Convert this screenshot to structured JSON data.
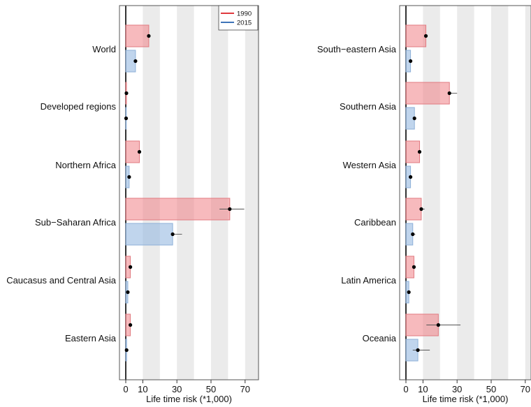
{
  "chart_data": [
    {
      "type": "bar",
      "orientation": "horizontal",
      "xlabel": "Life time risk (*1,000)",
      "xticks": [
        0,
        10,
        30,
        50,
        70
      ],
      "xlim": [
        0,
        78
      ],
      "background_bands": [
        [
          10,
          20
        ],
        [
          30,
          40
        ],
        [
          50,
          60
        ],
        [
          70,
          78
        ]
      ],
      "legend": {
        "placement": "top-right",
        "entries": [
          "1990",
          "2015"
        ]
      },
      "categories": [
        "World",
        "Developed regions",
        "Northern Africa",
        "Sub−Saharan Africa",
        "Caucasus and Central Asia",
        "Eastern Asia"
      ],
      "series": [
        {
          "name": "1990",
          "color": "#e0393e",
          "values": [
            13.5,
            0.4,
            8,
            61,
            2.7,
            2.7
          ],
          "ci": [
            [
              13,
              14
            ],
            [
              0.3,
              0.5
            ],
            [
              7.5,
              8.5
            ],
            [
              55,
              69.5
            ],
            [
              2.5,
              2.9
            ],
            [
              2.5,
              2.9
            ]
          ]
        },
        {
          "name": "2015",
          "color": "#3e74b8",
          "values": [
            5.7,
            0.2,
            2,
            27.5,
            1.2,
            0.5
          ],
          "ci": [
            [
              5.5,
              5.9
            ],
            [
              0.1,
              0.3
            ],
            [
              1.8,
              2.2
            ],
            [
              27,
              33
            ],
            [
              1.1,
              1.3
            ],
            [
              0.4,
              0.6
            ]
          ]
        }
      ]
    },
    {
      "type": "bar",
      "orientation": "horizontal",
      "xlabel": "Life time risk (*1,000)",
      "xticks": [
        0,
        10,
        30,
        50,
        70
      ],
      "xlim": [
        0,
        73
      ],
      "background_bands": [
        [
          10,
          20
        ],
        [
          30,
          40
        ],
        [
          50,
          60
        ],
        [
          70,
          73
        ]
      ],
      "categories": [
        "South−eastern Asia",
        "Southern Asia",
        "Western Asia",
        "Caribbean",
        "Latin America",
        "Oceania"
      ],
      "series": [
        {
          "name": "1990",
          "color": "#e0393e",
          "values": [
            11.7,
            25.5,
            8,
            9,
            4.7,
            19
          ],
          "ci": [
            [
              11,
              12.5
            ],
            [
              25,
              30
            ],
            [
              7.5,
              9
            ],
            [
              8,
              11
            ],
            [
              4.5,
              5
            ],
            [
              12,
              32
            ]
          ]
        },
        {
          "name": "2015",
          "color": "#3e74b8",
          "values": [
            2.7,
            5,
            2.7,
            4,
            1.7,
            7
          ],
          "ci": [
            [
              2.5,
              3
            ],
            [
              4.8,
              5.3
            ],
            [
              2.5,
              3
            ],
            [
              3.5,
              5.5
            ],
            [
              1.5,
              2
            ],
            [
              4,
              14
            ]
          ]
        }
      ]
    }
  ]
}
